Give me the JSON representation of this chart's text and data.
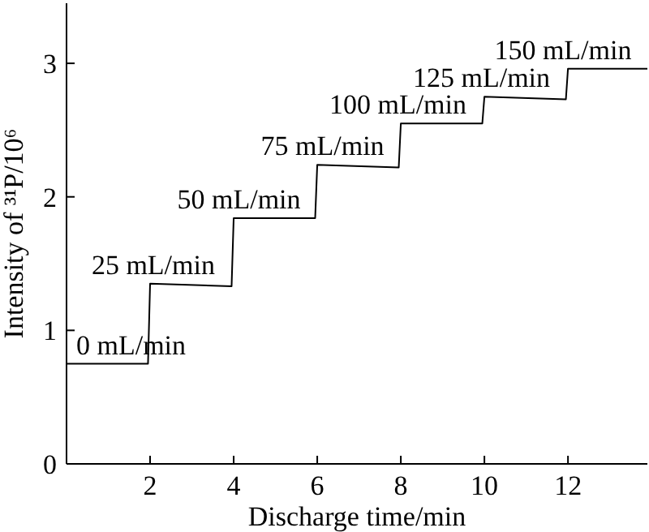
{
  "chart_data": {
    "type": "line",
    "xlabel": "Discharge time/min",
    "ylabel": "Intensity of ³¹P/10⁶",
    "x": [
      0,
      1.95,
      2,
      3.95,
      4,
      5.95,
      6,
      7.95,
      8,
      9.95,
      10,
      11.95,
      12,
      13.9
    ],
    "values": [
      0.75,
      0.75,
      1.35,
      1.33,
      1.84,
      1.84,
      2.24,
      2.22,
      2.55,
      2.55,
      2.75,
      2.73,
      2.96,
      2.96
    ],
    "color": "#000000",
    "line_style": "solid",
    "marker": "none",
    "grid": false,
    "xlim": [
      0,
      13.9
    ],
    "xticks": [
      2,
      4,
      6,
      8,
      10,
      12
    ],
    "ylim": [
      0,
      3.45
    ],
    "yticks": [
      0,
      1,
      2,
      3
    ],
    "annotations": [
      {
        "text": "0 mL/min",
        "x": 1.95,
        "y": 0.75
      },
      {
        "text": "25 mL/min",
        "x": 3.85,
        "y": 1.35
      },
      {
        "text": "50 mL/min",
        "x": 5.9,
        "y": 1.84
      },
      {
        "text": "75 mL/min",
        "x": 7.9,
        "y": 2.24
      },
      {
        "text": "100 mL/min",
        "x": 9.9,
        "y": 2.55
      },
      {
        "text": "125 mL/min",
        "x": 11.9,
        "y": 2.75
      },
      {
        "text": "150 mL/min",
        "x": 13.85,
        "y": 2.96
      }
    ]
  }
}
